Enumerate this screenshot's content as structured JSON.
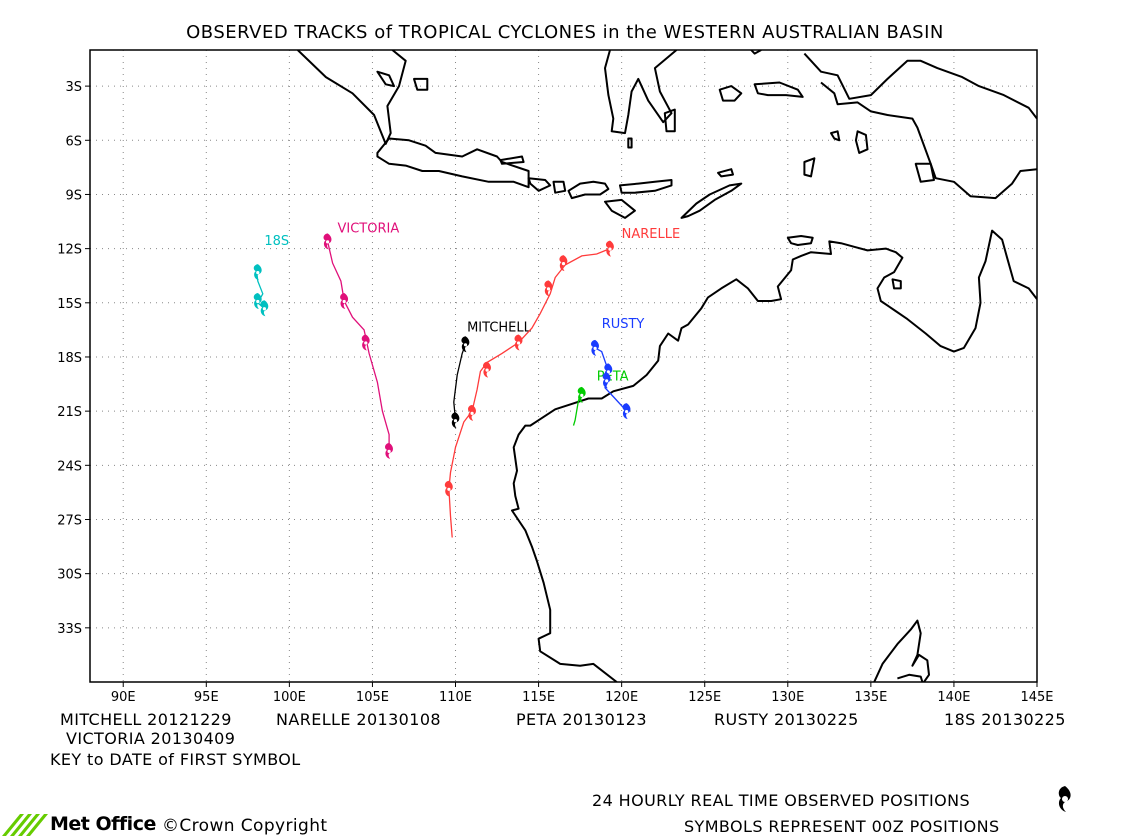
{
  "title": "OBSERVED TRACKS of TROPICAL CYCLONES in the WESTERN AUSTRALIAN BASIN",
  "map": {
    "lon_range": [
      88,
      145
    ],
    "lat_range": [
      -36,
      -1
    ],
    "lon_ticks": [
      "90E",
      "95E",
      "100E",
      "105E",
      "110E",
      "115E",
      "120E",
      "125E",
      "130E",
      "135E",
      "140E",
      "145E"
    ],
    "lat_ticks": [
      "3S",
      "6S",
      "9S",
      "12S",
      "15S",
      "18S",
      "21S",
      "24S",
      "27S",
      "30S",
      "33S"
    ],
    "grid": "dotted"
  },
  "storms": [
    {
      "name": "MITCHELL",
      "color": "#000000",
      "label": [
        110.7,
        -16.6
      ],
      "track": [
        [
          110.0,
          -21.5
        ],
        [
          109.9,
          -20.5
        ],
        [
          110.1,
          -19.0
        ],
        [
          110.4,
          -17.8
        ],
        [
          110.6,
          -17.3
        ]
      ],
      "symbols": [
        [
          110.6,
          -17.3
        ],
        [
          110.0,
          -21.5
        ]
      ]
    },
    {
      "name": "NARELLE",
      "color": "#ff3b3b",
      "label": [
        120.0,
        -11.4
      ],
      "track": [
        [
          119.3,
          -12.0
        ],
        [
          118.5,
          -12.3
        ],
        [
          117.6,
          -12.4
        ],
        [
          116.6,
          -12.9
        ],
        [
          116.0,
          -13.6
        ],
        [
          115.7,
          -14.5
        ],
        [
          115.1,
          -15.6
        ],
        [
          114.6,
          -16.4
        ],
        [
          113.8,
          -17.2
        ],
        [
          112.8,
          -17.8
        ],
        [
          111.9,
          -18.3
        ],
        [
          111.5,
          -18.8
        ],
        [
          111.3,
          -19.8
        ],
        [
          111.0,
          -21.0
        ],
        [
          110.5,
          -21.6
        ],
        [
          110.0,
          -23.0
        ],
        [
          109.7,
          -24.4
        ],
        [
          109.6,
          -25.3
        ],
        [
          109.7,
          -26.8
        ],
        [
          109.8,
          -28.0
        ]
      ],
      "symbols": [
        [
          119.3,
          -12.0
        ],
        [
          116.5,
          -12.8
        ],
        [
          115.6,
          -14.2
        ],
        [
          113.8,
          -17.2
        ],
        [
          111.9,
          -18.7
        ],
        [
          111.0,
          -21.1
        ],
        [
          109.6,
          -25.3
        ]
      ]
    },
    {
      "name": "PETA",
      "color": "#00cc00",
      "label": [
        118.5,
        -19.3
      ],
      "track": [
        [
          117.7,
          -19.8
        ],
        [
          117.4,
          -20.4
        ],
        [
          117.2,
          -21.5
        ],
        [
          117.1,
          -21.8
        ]
      ],
      "symbols": [
        [
          117.6,
          -20.1
        ]
      ]
    },
    {
      "name": "RUSTY",
      "color": "#1a3cff",
      "label": [
        118.8,
        -16.4
      ],
      "track": [
        [
          118.4,
          -17.5
        ],
        [
          118.8,
          -17.7
        ],
        [
          119.1,
          -18.5
        ],
        [
          119.2,
          -19.3
        ],
        [
          119.0,
          -19.7
        ],
        [
          119.6,
          -20.3
        ],
        [
          120.1,
          -20.8
        ],
        [
          120.3,
          -21.1
        ]
      ],
      "symbols": [
        [
          118.4,
          -17.5
        ],
        [
          119.2,
          -18.8
        ],
        [
          119.1,
          -19.3
        ],
        [
          120.3,
          -21.0
        ]
      ]
    },
    {
      "name": "18S",
      "color": "#00c0c0",
      "label": [
        98.5,
        -11.8
      ],
      "track": [
        [
          98.0,
          -13.0
        ],
        [
          98.1,
          -13.8
        ],
        [
          98.4,
          -14.5
        ],
        [
          98.1,
          -15.0
        ],
        [
          98.6,
          -15.4
        ]
      ],
      "symbols": [
        [
          98.1,
          -13.3
        ],
        [
          98.1,
          -14.9
        ],
        [
          98.5,
          -15.3
        ]
      ]
    },
    {
      "name": "VICTORIA",
      "color": "#e0107a",
      "label": [
        102.9,
        -11.1
      ],
      "track": [
        [
          102.3,
          -11.6
        ],
        [
          102.6,
          -12.8
        ],
        [
          103.1,
          -13.8
        ],
        [
          103.3,
          -14.9
        ],
        [
          103.8,
          -15.8
        ],
        [
          104.5,
          -16.5
        ],
        [
          104.8,
          -17.8
        ],
        [
          105.3,
          -19.4
        ],
        [
          105.6,
          -21.0
        ],
        [
          106.0,
          -22.3
        ],
        [
          106.0,
          -23.2
        ]
      ],
      "symbols": [
        [
          102.3,
          -11.6
        ],
        [
          103.3,
          -14.9
        ],
        [
          104.6,
          -17.2
        ],
        [
          106.0,
          -23.2
        ]
      ]
    }
  ],
  "key": {
    "line1": [
      "MITCHELL 20121229",
      "NARELLE 20130108",
      "PETA 20130123",
      "RUSTY 20130225",
      "18S 20130225"
    ],
    "line2": "VICTORIA 20130409",
    "line3": "KEY to DATE of FIRST SYMBOL"
  },
  "footer": {
    "logo": "Met Office",
    "copyright": "©Crown Copyright",
    "observed": "24 HOURLY REAL TIME OBSERVED POSITIONS",
    "symbols_note": "SYMBOLS REPRESENT 00Z POSITIONS"
  },
  "colors": {
    "land_outline": "#000000",
    "grid": "#888888",
    "logo_green": "#66cc00"
  }
}
